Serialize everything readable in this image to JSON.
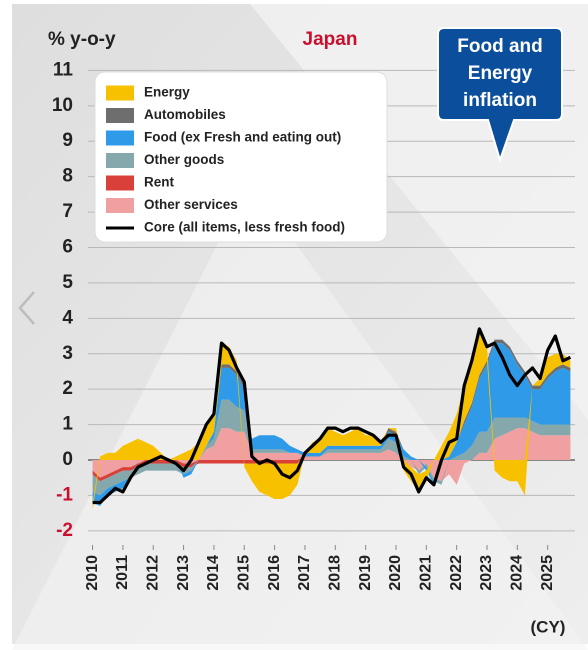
{
  "chart_data": {
    "type": "stacked_area",
    "title": "Japan",
    "y_label": "% y-o-y",
    "x_label": "(CY)",
    "callout": [
      "Food and",
      "Energy",
      "inflation"
    ],
    "x": [
      2010,
      2010.25,
      2010.5,
      2010.75,
      2011,
      2011.25,
      2011.5,
      2011.75,
      2012,
      2012.25,
      2012.5,
      2012.75,
      2013,
      2013.25,
      2013.5,
      2013.75,
      2014,
      2014.25,
      2014.5,
      2014.75,
      2015,
      2015.25,
      2015.5,
      2015.75,
      2016,
      2016.25,
      2016.5,
      2016.75,
      2017,
      2017.25,
      2017.5,
      2017.75,
      2018,
      2018.25,
      2018.5,
      2018.75,
      2019,
      2019.25,
      2019.5,
      2019.75,
      2020,
      2020.25,
      2020.5,
      2020.75,
      2021,
      2021.25,
      2021.5,
      2021.75,
      2022,
      2022.25,
      2022.5,
      2022.75,
      2023,
      2023.25,
      2023.5,
      2023.75,
      2024,
      2024.25,
      2024.5,
      2024.75,
      2025,
      2025.25,
      2025.5,
      2025.75
    ],
    "xlim": [
      2009.85,
      2025.9
    ],
    "xticks": [
      2010,
      2011,
      2012,
      2013,
      2014,
      2015,
      2016,
      2017,
      2018,
      2019,
      2020,
      2021,
      2022,
      2023,
      2024,
      2025
    ],
    "ylim": [
      -2.4,
      11.35
    ],
    "yticks": [
      -2,
      -1,
      0,
      1,
      2,
      3,
      4,
      5,
      6,
      7,
      8,
      9,
      10,
      11
    ],
    "grid": true,
    "series": [
      {
        "name": "Energy",
        "color": "#f8c100",
        "values": [
          -0.2,
          0.1,
          0.2,
          0.2,
          0.4,
          0.5,
          0.6,
          0.5,
          0.4,
          0.2,
          0,
          0.1,
          0.2,
          0.3,
          0.5,
          0.5,
          0.5,
          0.6,
          0.5,
          0.3,
          -0.1,
          -0.5,
          -0.8,
          -0.9,
          -1,
          -1,
          -0.9,
          -0.6,
          0,
          0.3,
          0.4,
          0.5,
          0.4,
          0.3,
          0.4,
          0.5,
          0.3,
          0.3,
          0.1,
          0,
          0.1,
          -0.3,
          -0.4,
          -0.5,
          -0.3,
          0,
          0.4,
          0.7,
          0.8,
          1,
          1.1,
          1.2,
          0.4,
          -0.3,
          -0.5,
          -0.6,
          -0.6,
          -1,
          0,
          0.2,
          0.5,
          0.4,
          0.3,
          0.2
        ]
      },
      {
        "name": "Automobiles",
        "color": "#6e6e6e",
        "values": [
          0,
          0,
          0,
          0,
          0,
          0,
          0,
          0,
          0,
          0,
          0,
          0,
          0,
          0,
          0,
          0,
          0,
          0.1,
          0.1,
          0.1,
          0.1,
          0,
          0,
          0,
          0,
          0,
          0,
          0,
          0,
          0,
          0,
          0,
          0,
          0,
          0,
          0,
          0,
          0,
          0,
          0.1,
          0.1,
          0,
          0,
          0,
          0,
          0,
          0,
          0,
          0,
          0.1,
          0.1,
          0.1,
          0.1,
          0.1,
          0.1,
          0.1,
          0.1,
          0.1,
          0.1,
          0.1,
          0.1,
          0.1,
          0.1,
          0.1
        ]
      },
      {
        "name": "Food (ex Fresh and eating out)",
        "color": "#2f9be8",
        "values": [
          -0.3,
          -0.3,
          -0.2,
          -0.2,
          -0.2,
          -0.1,
          0,
          0,
          0,
          0,
          0,
          0,
          -0.1,
          -0.1,
          0,
          0,
          0.2,
          0.9,
          0.9,
          0.9,
          0.6,
          0.3,
          0.4,
          0.4,
          0.4,
          0.3,
          0.2,
          0.1,
          0.1,
          0.1,
          0.1,
          0.1,
          0.1,
          0.1,
          0.1,
          0.1,
          0.1,
          0.1,
          0.1,
          0.2,
          0.2,
          0.2,
          0.1,
          0,
          -0.1,
          -0.1,
          0,
          0.1,
          0.4,
          0.8,
          1.1,
          1.5,
          1.9,
          2.1,
          2.1,
          1.9,
          1.5,
          1.2,
          0.9,
          1,
          1.3,
          1.5,
          1.6,
          1.5
        ]
      },
      {
        "name": "Other goods",
        "color": "#84a8ab",
        "values": [
          -0.5,
          -0.4,
          -0.3,
          -0.3,
          -0.3,
          -0.2,
          -0.2,
          -0.2,
          -0.2,
          -0.2,
          -0.2,
          -0.2,
          -0.2,
          -0.1,
          0,
          0.1,
          0.2,
          0.8,
          0.8,
          0.7,
          0.6,
          0.1,
          0.1,
          0.1,
          0.1,
          0.1,
          0,
          0,
          0,
          0,
          0,
          0.1,
          0.1,
          0.1,
          0.1,
          0.1,
          0.1,
          0.1,
          0.1,
          0.3,
          0.3,
          0.1,
          0,
          -0.1,
          -0.1,
          -0.1,
          -0.1,
          0,
          0.1,
          0.2,
          0.4,
          0.6,
          0.6,
          0.6,
          0.5,
          0.4,
          0.3,
          0.3,
          0.3,
          0.3,
          0.3,
          0.3,
          0.3,
          0.3
        ]
      },
      {
        "name": "Rent",
        "color": "#d9403a",
        "values": [
          -0.1,
          -0.1,
          -0.1,
          -0.1,
          -0.1,
          -0.1,
          -0.1,
          -0.1,
          -0.1,
          -0.1,
          -0.1,
          -0.1,
          -0.1,
          -0.1,
          -0.1,
          -0.1,
          -0.1,
          -0.1,
          -0.1,
          -0.1,
          -0.1,
          -0.1,
          -0.1,
          -0.1,
          -0.1,
          -0.1,
          -0.1,
          -0.1,
          0,
          0,
          0,
          0,
          0,
          0,
          0,
          0,
          0,
          0,
          0,
          0,
          0,
          0,
          0,
          0,
          0,
          0,
          0,
          0,
          0,
          0,
          0,
          0,
          0,
          0,
          0,
          0,
          0,
          0,
          0,
          0,
          0,
          0,
          0,
          0
        ]
      },
      {
        "name": "Other services",
        "color": "#f0a0a0",
        "values": [
          -0.3,
          -0.5,
          -0.4,
          -0.3,
          -0.2,
          -0.2,
          -0.1,
          0,
          0,
          0,
          0,
          0,
          -0.1,
          -0.1,
          0,
          0.3,
          0.4,
          0.9,
          0.9,
          0.8,
          0.8,
          0.2,
          0.2,
          0.2,
          0.2,
          0.2,
          0.2,
          0.2,
          0.1,
          0.1,
          0.1,
          0.2,
          0.2,
          0.2,
          0.2,
          0.2,
          0.2,
          0.2,
          0.2,
          0.3,
          0.2,
          0,
          -0.2,
          -0.3,
          -0.1,
          -0.5,
          -0.6,
          -0.4,
          -0.7,
          -0.1,
          0,
          0.2,
          0.2,
          0.6,
          0.7,
          0.8,
          0.9,
          0.9,
          0.8,
          0.7,
          0.7,
          0.7,
          0.7,
          0.7
        ]
      },
      {
        "name": "Core (all items, less fresh food)",
        "color": "#000000",
        "type": "line",
        "values": [
          -1.2,
          -1.2,
          -1,
          -0.8,
          -0.9,
          -0.5,
          -0.2,
          -0.1,
          0,
          0.1,
          0,
          -0.1,
          -0.3,
          0,
          0.5,
          1,
          1.3,
          3.3,
          3.1,
          2.6,
          2.2,
          0.1,
          -0.1,
          0,
          -0.1,
          -0.4,
          -0.5,
          -0.3,
          0.2,
          0.4,
          0.6,
          0.9,
          0.9,
          0.8,
          0.9,
          0.9,
          0.8,
          0.7,
          0.5,
          0.7,
          0.7,
          -0.2,
          -0.4,
          -0.9,
          -0.5,
          -0.7,
          0,
          0.5,
          0.6,
          2.1,
          2.8,
          3.7,
          3.2,
          3.3,
          2.9,
          2.4,
          2.1,
          2.4,
          2.6,
          2.3,
          3.1,
          3.5,
          2.8,
          2.9
        ]
      }
    ]
  }
}
